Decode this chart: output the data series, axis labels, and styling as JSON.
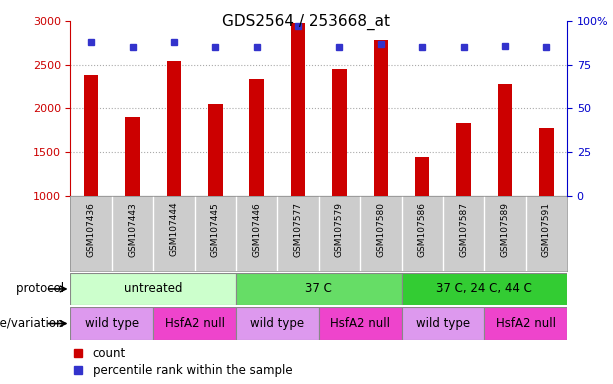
{
  "title": "GDS2564 / 253668_at",
  "samples": [
    "GSM107436",
    "GSM107443",
    "GSM107444",
    "GSM107445",
    "GSM107446",
    "GSM107577",
    "GSM107579",
    "GSM107580",
    "GSM107586",
    "GSM107587",
    "GSM107589",
    "GSM107591"
  ],
  "counts": [
    2380,
    1900,
    2540,
    2050,
    2340,
    2980,
    2450,
    2780,
    1440,
    1830,
    2280,
    1780
  ],
  "percentile_ranks": [
    88,
    85,
    88,
    85,
    85,
    97,
    85,
    87,
    85,
    85,
    86,
    85
  ],
  "ylim_left": [
    1000,
    3000
  ],
  "ylim_right": [
    0,
    100
  ],
  "yticks_left": [
    1000,
    1500,
    2000,
    2500,
    3000
  ],
  "yticks_right": [
    0,
    25,
    50,
    75,
    100
  ],
  "bar_color": "#cc0000",
  "dot_color": "#3333cc",
  "protocol_groups": [
    {
      "label": "untreated",
      "start": 0,
      "end": 4,
      "color": "#ccffcc"
    },
    {
      "label": "37 C",
      "start": 4,
      "end": 8,
      "color": "#66dd66"
    },
    {
      "label": "37 C, 24 C, 44 C",
      "start": 8,
      "end": 12,
      "color": "#33cc33"
    }
  ],
  "genotype_groups": [
    {
      "label": "wild type",
      "start": 0,
      "end": 2,
      "color": "#dd99ee"
    },
    {
      "label": "HsfA2 null",
      "start": 2,
      "end": 4,
      "color": "#ee44cc"
    },
    {
      "label": "wild type",
      "start": 4,
      "end": 6,
      "color": "#dd99ee"
    },
    {
      "label": "HsfA2 null",
      "start": 6,
      "end": 8,
      "color": "#ee44cc"
    },
    {
      "label": "wild type",
      "start": 8,
      "end": 10,
      "color": "#dd99ee"
    },
    {
      "label": "HsfA2 null",
      "start": 10,
      "end": 12,
      "color": "#ee44cc"
    }
  ],
  "protocol_label": "protocol",
  "genotype_label": "genotype/variation",
  "legend_count_label": "count",
  "legend_percentile_label": "percentile rank within the sample",
  "left_axis_color": "#cc0000",
  "right_axis_color": "#0000cc",
  "grid_color": "#aaaaaa",
  "sample_bg_color": "#cccccc",
  "bar_width": 0.35
}
